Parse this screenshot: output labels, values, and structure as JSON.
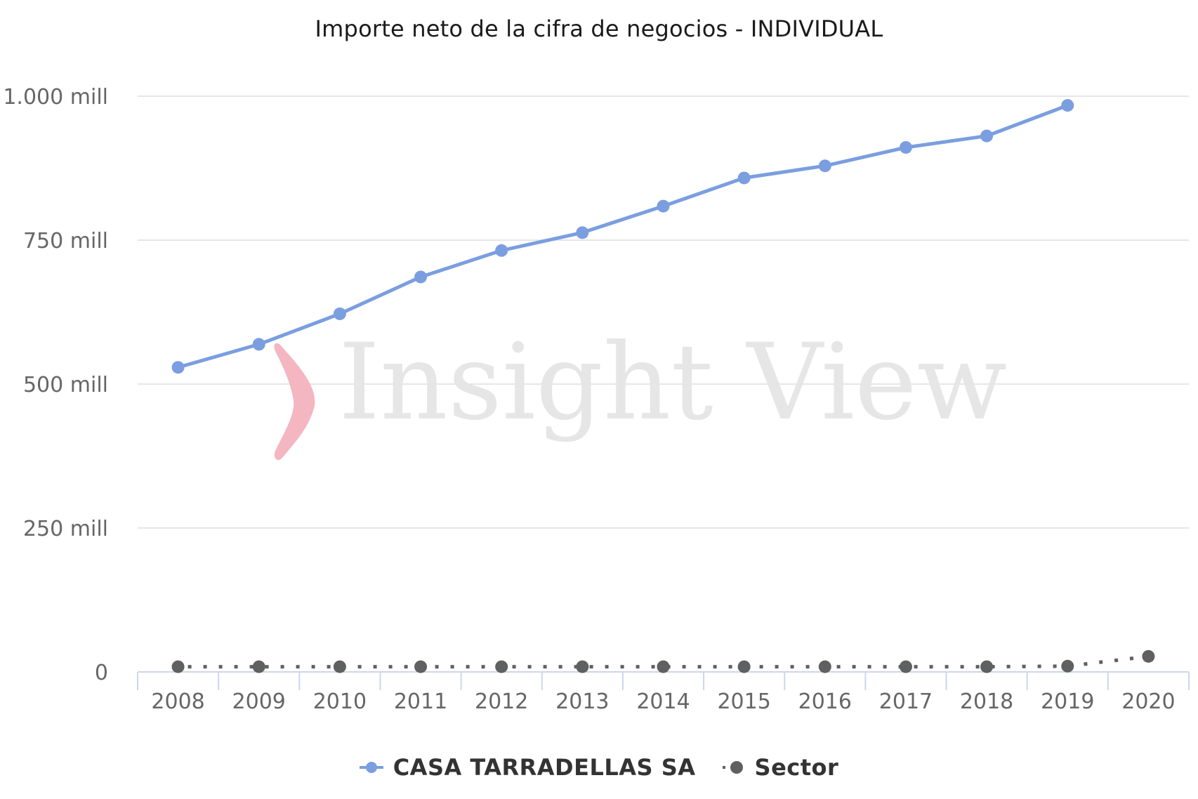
{
  "chart_data": {
    "type": "line",
    "title": "Importe neto de la cifra de negocios - INDIVIDUAL",
    "xlabel": "",
    "ylabel": "",
    "categories": [
      "2008",
      "2009",
      "2010",
      "2011",
      "2012",
      "2013",
      "2014",
      "2015",
      "2016",
      "2017",
      "2018",
      "2019",
      "2020"
    ],
    "y_ticks": [
      {
        "value": 0,
        "label": "0"
      },
      {
        "value": 250,
        "label": "250 mill"
      },
      {
        "value": 500,
        "label": "500 mill"
      },
      {
        "value": 750,
        "label": "750 mill"
      },
      {
        "value": 1000,
        "label": "1.000 mill"
      }
    ],
    "ylim": [
      0,
      1000
    ],
    "units": "millones",
    "grid": true,
    "legend_position": "bottom",
    "series": [
      {
        "name": "CASA TARRADELLAS SA",
        "color": "#7a9ee0",
        "style": "solid",
        "values": [
          529,
          569,
          622,
          686,
          732,
          763,
          809,
          858,
          879,
          911,
          931,
          984,
          null
        ]
      },
      {
        "name": "Sector",
        "color": "#606060",
        "style": "dotted",
        "values": [
          9,
          9,
          9,
          9,
          9,
          9,
          9,
          9,
          9,
          9,
          9,
          10,
          27
        ]
      }
    ]
  },
  "watermark": {
    "text": "Insight View",
    "logo_color": "#f4b6c0"
  },
  "legend": {
    "items": [
      {
        "label": "CASA TARRADELLAS SA"
      },
      {
        "label": "Sector"
      }
    ]
  }
}
